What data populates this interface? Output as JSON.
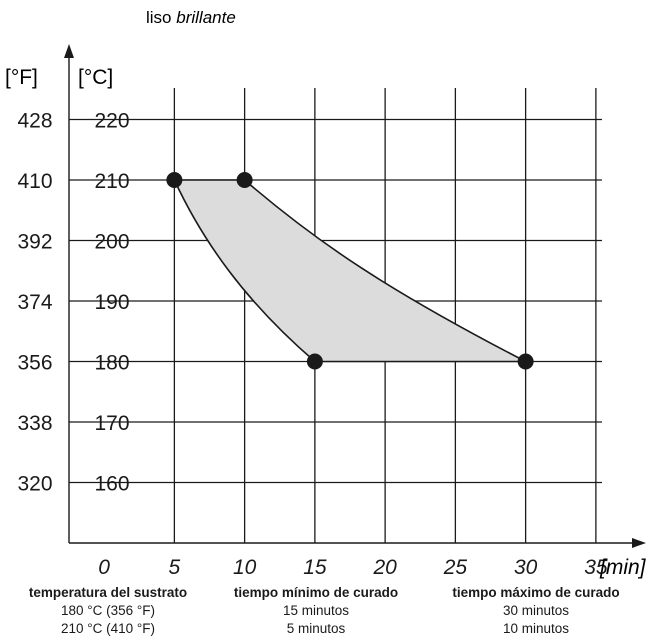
{
  "title": {
    "prefix": "liso",
    "emphasis": "brillante"
  },
  "chart_data": {
    "type": "area",
    "axes": {
      "x": {
        "unit": "[min]",
        "ticks": [
          0,
          5,
          10,
          15,
          20,
          25,
          30,
          35
        ],
        "range": [
          -2.5,
          37.5
        ]
      },
      "y_celsius": {
        "unit": "[°C]",
        "ticks": [
          160,
          170,
          180,
          190,
          200,
          210,
          220
        ],
        "range": [
          150,
          230
        ]
      },
      "y_fahrenheit": {
        "unit": "[°F]",
        "ticks": [
          320,
          338,
          356,
          374,
          392,
          410,
          428
        ]
      }
    },
    "grid": true,
    "points": [
      {
        "x": 5,
        "y": 210
      },
      {
        "x": 10,
        "y": 210
      },
      {
        "x": 15,
        "y": 180
      },
      {
        "x": 30,
        "y": 180
      }
    ],
    "lower_curve": [
      [
        5,
        210
      ],
      [
        7,
        200
      ],
      [
        10,
        190
      ],
      [
        15,
        180
      ]
    ],
    "upper_curve": [
      [
        10,
        210
      ],
      [
        15,
        200
      ],
      [
        20,
        192
      ],
      [
        30,
        180
      ]
    ],
    "fill_color": "#dcdcdc",
    "line_color": "#1a1a1a"
  },
  "table": {
    "headers": [
      "temperatura del sustrato",
      "tiempo mínimo de curado",
      "tiempo máximo de curado"
    ],
    "rows": [
      [
        "180 °C (356 °F)",
        "15 minutos",
        "30 minutos"
      ],
      [
        "210 °C (410 °F)",
        "5 minutos",
        "10 minutos"
      ]
    ]
  }
}
